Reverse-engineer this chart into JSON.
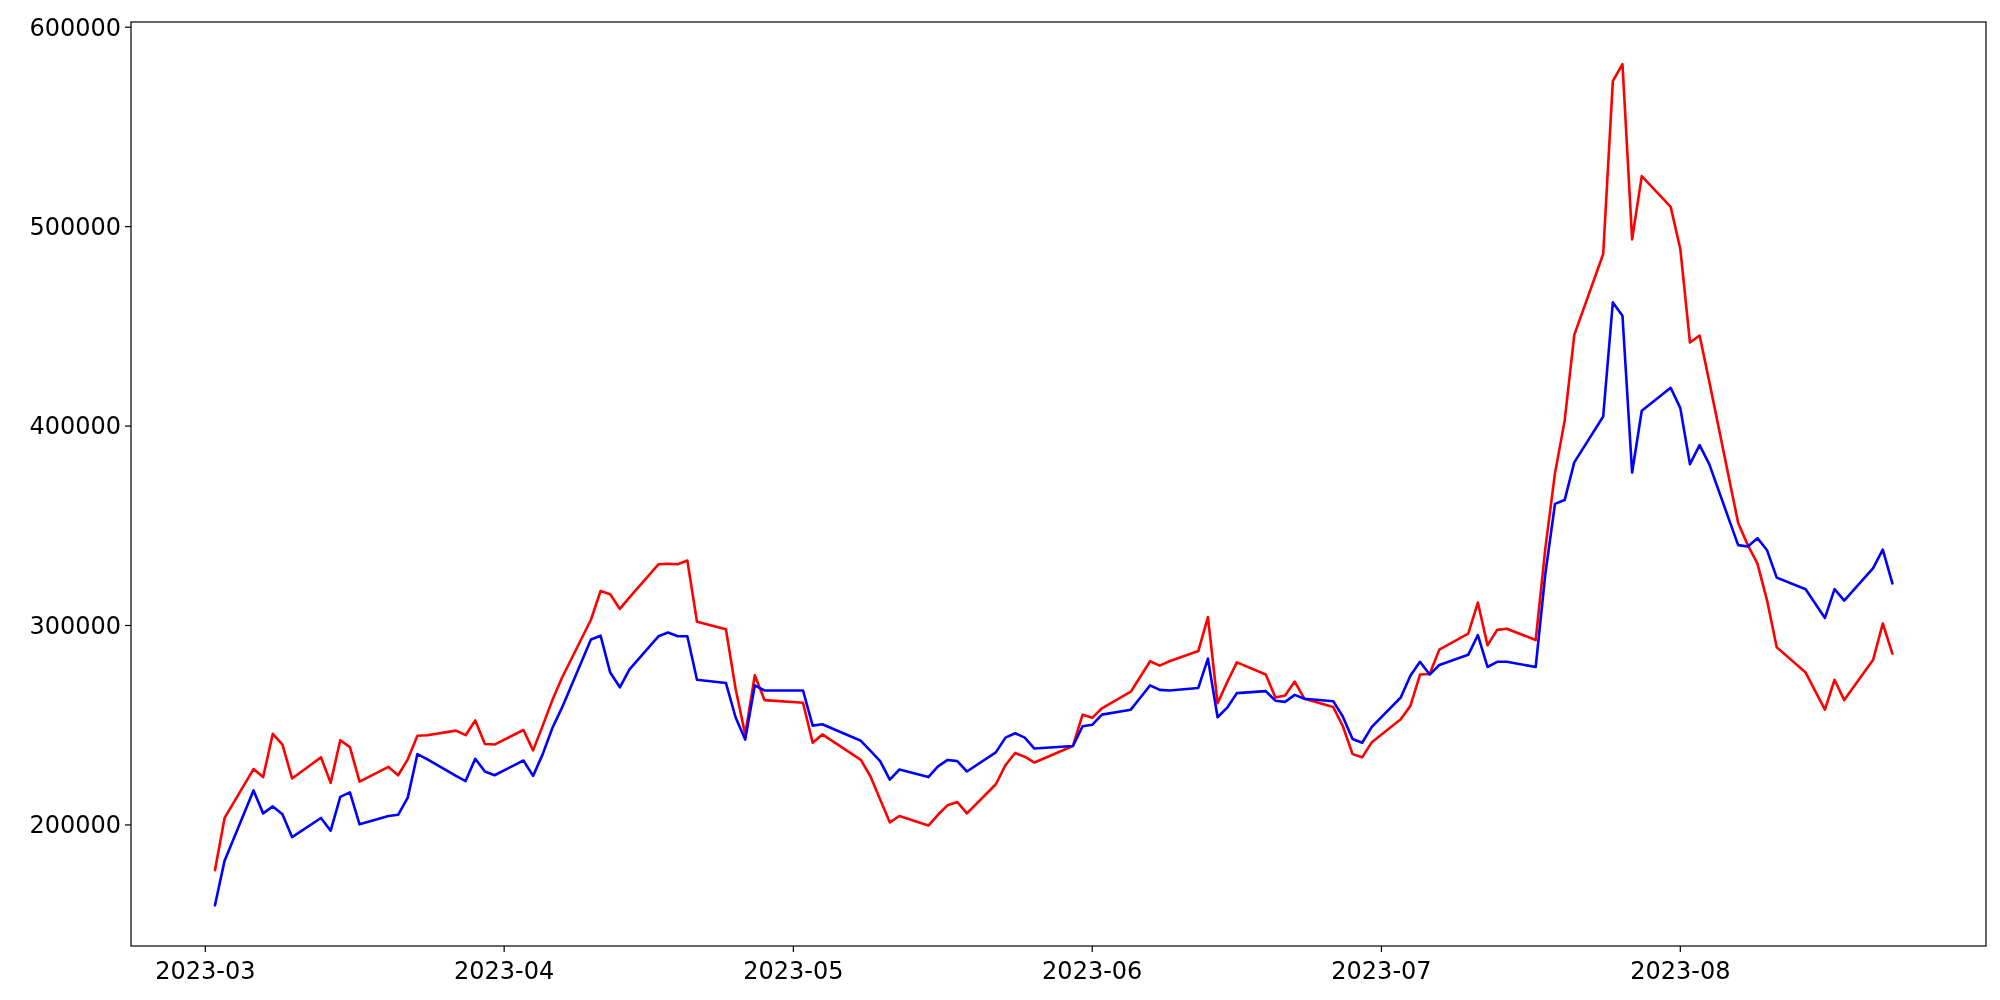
{
  "chart_data": {
    "type": "line",
    "x": [
      "2023-03-02",
      "2023-03-03",
      "2023-03-06",
      "2023-03-07",
      "2023-03-08",
      "2023-03-09",
      "2023-03-10",
      "2023-03-13",
      "2023-03-14",
      "2023-03-15",
      "2023-03-16",
      "2023-03-17",
      "2023-03-20",
      "2023-03-21",
      "2023-03-22",
      "2023-03-23",
      "2023-03-24",
      "2023-03-27",
      "2023-03-28",
      "2023-03-29",
      "2023-03-30",
      "2023-03-31",
      "2023-04-03",
      "2023-04-04",
      "2023-04-05",
      "2023-04-06",
      "2023-04-07",
      "2023-04-10",
      "2023-04-11",
      "2023-04-12",
      "2023-04-13",
      "2023-04-14",
      "2023-04-17",
      "2023-04-18",
      "2023-04-19",
      "2023-04-20",
      "2023-04-21",
      "2023-04-24",
      "2023-04-25",
      "2023-04-26",
      "2023-04-27",
      "2023-04-28",
      "2023-05-02",
      "2023-05-03",
      "2023-05-04",
      "2023-05-08",
      "2023-05-09",
      "2023-05-10",
      "2023-05-11",
      "2023-05-12",
      "2023-05-15",
      "2023-05-16",
      "2023-05-17",
      "2023-05-18",
      "2023-05-19",
      "2023-05-22",
      "2023-05-23",
      "2023-05-24",
      "2023-05-25",
      "2023-05-26",
      "2023-05-30",
      "2023-05-31",
      "2023-06-01",
      "2023-06-02",
      "2023-06-05",
      "2023-06-06",
      "2023-06-07",
      "2023-06-08",
      "2023-06-09",
      "2023-06-12",
      "2023-06-13",
      "2023-06-14",
      "2023-06-15",
      "2023-06-16",
      "2023-06-19",
      "2023-06-20",
      "2023-06-21",
      "2023-06-22",
      "2023-06-23",
      "2023-06-26",
      "2023-06-27",
      "2023-06-28",
      "2023-06-29",
      "2023-06-30",
      "2023-07-03",
      "2023-07-04",
      "2023-07-05",
      "2023-07-06",
      "2023-07-07",
      "2023-07-10",
      "2023-07-11",
      "2023-07-12",
      "2023-07-13",
      "2023-07-14",
      "2023-07-17",
      "2023-07-18",
      "2023-07-19",
      "2023-07-20",
      "2023-07-21",
      "2023-07-24",
      "2023-07-25",
      "2023-07-26",
      "2023-07-27",
      "2023-07-28",
      "2023-07-31",
      "2023-08-01",
      "2023-08-02",
      "2023-08-03",
      "2023-08-04",
      "2023-08-07",
      "2023-08-08",
      "2023-08-09",
      "2023-08-10",
      "2023-08-11",
      "2023-08-14",
      "2023-08-16",
      "2023-08-17",
      "2023-08-18",
      "2023-08-21",
      "2023-08-22",
      "2023-08-23"
    ],
    "series": [
      {
        "color": "#ff0000",
        "values": [
          177300,
          203500,
          228000,
          224000,
          245700,
          240300,
          223300,
          233900,
          221100,
          242500,
          239000,
          221700,
          229100,
          224900,
          232900,
          244700,
          245000,
          247300,
          245000,
          252400,
          240600,
          240300,
          247600,
          237400,
          249800,
          262600,
          273800,
          302900,
          317300,
          315700,
          308300,
          314100,
          330700,
          331000,
          330700,
          332600,
          301900,
          298100,
          268400,
          245400,
          275100,
          262600,
          261300,
          241200,
          245400,
          232600,
          224300,
          212800,
          201300,
          204500,
          199700,
          205100,
          209900,
          211500,
          205800,
          220400,
          230000,
          236100,
          234200,
          231300,
          239600,
          255300,
          253700,
          258500,
          266800,
          274400,
          282100,
          279900,
          282100,
          287200,
          304200,
          261000,
          271600,
          281500,
          275400,
          263900,
          264900,
          271900,
          263300,
          259100,
          249500,
          235500,
          233900,
          241500,
          253000,
          259700,
          275400,
          275700,
          287900,
          295900,
          311500,
          290100,
          297800,
          298400,
          292700,
          338700,
          376400,
          402600,
          445700,
          486300,
          572900,
          581500,
          493600,
          525300,
          509900,
          488800,
          441900,
          445400,
          422400,
          351400,
          340300,
          331000,
          312500,
          289100,
          276400,
          257800,
          272800,
          262600,
          282800,
          301000,
          285900
        ]
      },
      {
        "color": "#0000ff",
        "values": [
          159700,
          182100,
          217300,
          205800,
          209300,
          205400,
          193900,
          203500,
          197100,
          214100,
          216300,
          200300,
          204500,
          205100,
          213700,
          235500,
          233000,
          224600,
          222000,
          233200,
          226800,
          224900,
          232300,
          224600,
          235500,
          248600,
          258800,
          293000,
          294900,
          276400,
          269000,
          278000,
          294600,
          296500,
          294600,
          294600,
          272800,
          271200,
          254000,
          242800,
          270000,
          267400,
          267400,
          249800,
          250500,
          242200,
          237100,
          232000,
          222700,
          227800,
          224000,
          229400,
          232600,
          232000,
          226800,
          236400,
          243800,
          246000,
          243800,
          238300,
          239600,
          249500,
          250200,
          255300,
          257800,
          263900,
          270000,
          267700,
          267400,
          268700,
          283400,
          254000,
          258800,
          266100,
          267100,
          262300,
          261700,
          265200,
          263300,
          262000,
          254300,
          243100,
          241200,
          249200,
          263900,
          274800,
          281800,
          275400,
          280200,
          285300,
          295200,
          279200,
          281800,
          281800,
          279200,
          325900,
          361000,
          362900,
          381800,
          404800,
          462000,
          455300,
          376700,
          407700,
          419200,
          409000,
          380900,
          390400,
          380900,
          340300,
          339600,
          343800,
          337700,
          324000,
          318200,
          303800,
          318200,
          312500,
          328800,
          338000,
          321100
        ]
      }
    ],
    "xlim": [
      "2023-02-21T07:00",
      "2023-09-01T17:00"
    ],
    "xticks": [
      {
        "value": "2023-03-01",
        "label": "2023-03"
      },
      {
        "value": "2023-04-01",
        "label": "2023-04"
      },
      {
        "value": "2023-05-01",
        "label": "2023-05"
      },
      {
        "value": "2023-06-01",
        "label": "2023-06"
      },
      {
        "value": "2023-07-01",
        "label": "2023-07"
      },
      {
        "value": "2023-08-01",
        "label": "2023-08"
      }
    ],
    "ylim": [
      139300,
      602600
    ],
    "yticks": [
      200000,
      300000,
      400000,
      500000,
      600000
    ]
  }
}
